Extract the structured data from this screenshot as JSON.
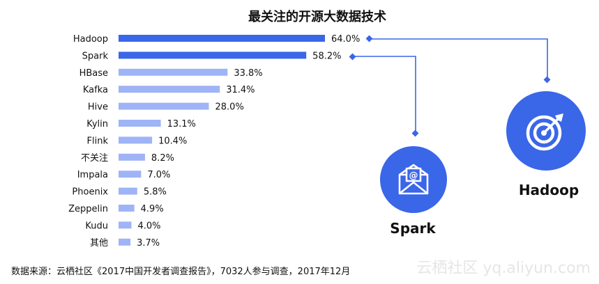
{
  "chart_data": {
    "type": "bar",
    "orientation": "horizontal",
    "title": "最关注的开源大数据技术",
    "categories": [
      "Hadoop",
      "Spark",
      "HBase",
      "Kafka",
      "Hive",
      "Kylin",
      "Flink",
      "不关注",
      "Impala",
      "Phoenix",
      "Zeppelin",
      "Kudu",
      "其他"
    ],
    "values": [
      64.0,
      58.2,
      33.8,
      31.4,
      28.0,
      13.1,
      10.4,
      8.2,
      7.0,
      5.8,
      4.9,
      4.0,
      3.7
    ],
    "value_labels": [
      "64.0%",
      "58.2%",
      "33.8%",
      "31.4%",
      "28.0%",
      "13.1%",
      "10.4%",
      "8.2%",
      "7.0%",
      "5.8%",
      "4.9%",
      "4.0%",
      "3.7%"
    ],
    "highlighted": [
      "Hadoop",
      "Spark"
    ],
    "xlim": [
      0,
      64.0
    ],
    "grid": false,
    "legend": "none"
  },
  "colors": {
    "highlight_bar": "#3a66e8",
    "normal_bar": "#9fb4f6",
    "icon_circle": "#3a66e8",
    "connector": "#3a66e8"
  },
  "callouts": [
    {
      "label": "Hadoop",
      "icon": "target-icon"
    },
    {
      "label": "Spark",
      "icon": "mail-icon"
    }
  ],
  "footer": "数据来源：云栖社区《2017中国开发者调查报告》，7032人参与调查，2017年12月",
  "watermark": "云栖社区 yq.aliyun.com"
}
